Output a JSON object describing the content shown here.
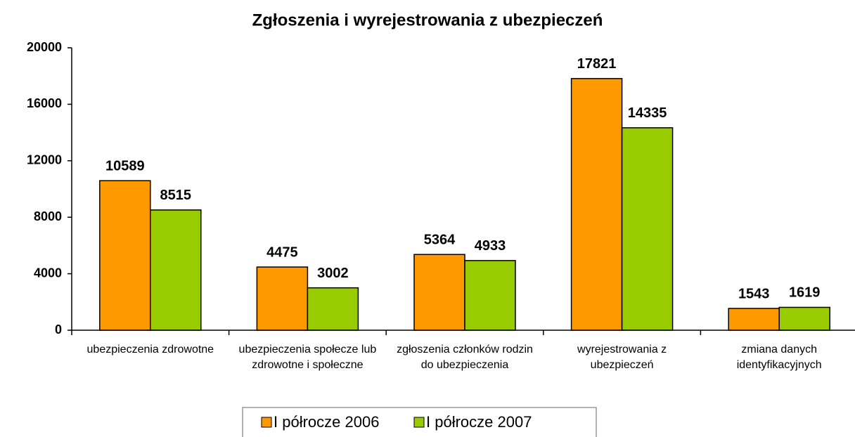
{
  "chart_data": {
    "type": "bar",
    "title": "Zgłoszenia i wyrejestrowania z ubezpieczeń",
    "categories": [
      "ubezpieczenia zdrowotne",
      "ubezpieczenia społecze lub zdrowotne i społeczne",
      "zgłoszenia członków rodzin do ubezpieczenia",
      "wyrejestrowania z ubezpieczeń",
      "zmiana danych identyfikacyjnych"
    ],
    "series": [
      {
        "name": "I półrocze 2006",
        "color": "#ff9900",
        "values": [
          10589,
          4475,
          5364,
          17821,
          1543
        ]
      },
      {
        "name": "I półrocze 2007",
        "color": "#99cc00",
        "values": [
          8515,
          3002,
          4933,
          14335,
          1619
        ]
      }
    ],
    "ylim": [
      0,
      20000
    ],
    "yticks": [
      0,
      4000,
      8000,
      12000,
      16000,
      20000
    ],
    "legend": "bottom"
  }
}
